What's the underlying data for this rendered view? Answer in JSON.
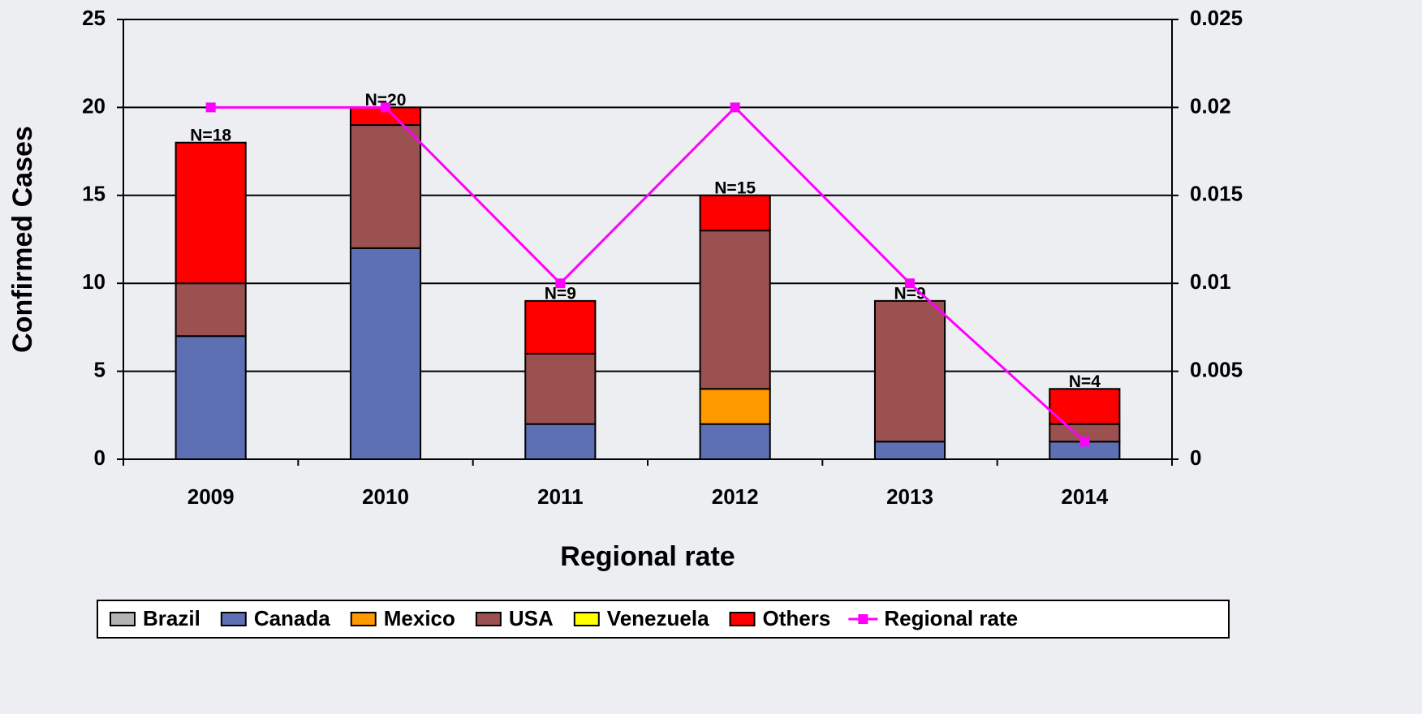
{
  "chart_data": {
    "type": "stacked-bar-line",
    "categories": [
      "2009",
      "2010",
      "2011",
      "2012",
      "2013",
      "2014"
    ],
    "series": [
      {
        "name": "Brazil",
        "color": "#b3b3b3",
        "values": [
          0,
          0,
          0,
          0,
          0,
          0
        ]
      },
      {
        "name": "Canada",
        "color": "#5d70b4",
        "values": [
          7,
          12,
          2,
          2,
          1,
          1
        ]
      },
      {
        "name": "Mexico",
        "color": "#ff9900",
        "values": [
          0,
          0,
          0,
          2,
          0,
          0
        ]
      },
      {
        "name": "USA",
        "color": "#9c5151",
        "values": [
          3,
          7,
          4,
          9,
          8,
          1
        ]
      },
      {
        "name": "Venezuela",
        "color": "#ffff00",
        "values": [
          0,
          0,
          0,
          0,
          0,
          0
        ]
      },
      {
        "name": "Others",
        "color": "#ff0000",
        "values": [
          8,
          1,
          3,
          2,
          0,
          2
        ]
      },
      {
        "name": "Regional rate",
        "color": "#ff00ff",
        "axis": "y2",
        "type": "line",
        "values": [
          0.02,
          0.02,
          0.01,
          0.02,
          0.01,
          0.001
        ]
      }
    ],
    "annotations": [
      "N=18",
      "N=20",
      "N=9",
      "N=15",
      "N=9",
      "N=4"
    ],
    "ylabel": "Confirmed Cases",
    "xlabel": "Regional rate",
    "ylim": [
      0,
      25
    ],
    "yticks": [
      0,
      5,
      10,
      15,
      20,
      25
    ],
    "y2lim": [
      0,
      0.025
    ],
    "y2ticks": [
      0,
      0.005,
      0.01,
      0.015,
      0.02,
      0.025
    ],
    "grid": true,
    "legend": "bottom"
  }
}
